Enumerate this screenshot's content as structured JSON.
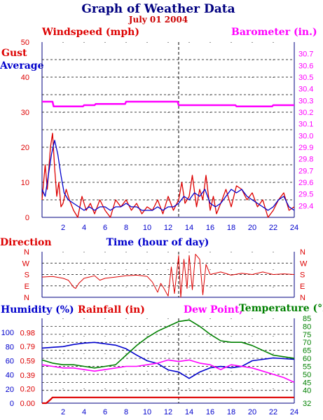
{
  "title": "Graph of Weather Data",
  "subtitle": "July 01 2004",
  "colors": {
    "title": "#000080",
    "subtitle": "#cc0000",
    "gust": "#dd0000",
    "average": "#0000cc",
    "barometer": "#ff00ff",
    "direction": "#dd0000",
    "humidity": "#0000cc",
    "rainfall": "#dd0000",
    "dewpoint": "#ff00ff",
    "temperature": "#008000",
    "axis": "#000080",
    "grid": "#000000"
  },
  "chart_data": [
    {
      "type": "line",
      "panel": "wind-barometer",
      "left_axis_label": "Windspeed (mph)",
      "right_axis_label": "Barometer (in.)",
      "left_series_labels": [
        "Gust",
        "Average"
      ],
      "xlabel": "Time (hour of day)",
      "xlim": [
        0,
        24
      ],
      "x_ticks": [
        2,
        4,
        6,
        8,
        10,
        12,
        14,
        16,
        18,
        20,
        22,
        24
      ],
      "ylim_left": [
        0,
        50
      ],
      "y_ticks_left": [
        0,
        10,
        20,
        30,
        40,
        50
      ],
      "ylim_right": [
        29.3,
        30.8
      ],
      "y_ticks_right": [
        "29.4",
        "29.5",
        "29.6",
        "29.7",
        "29.8",
        "29.9",
        "30.0",
        "30.1",
        "30.2",
        "30.3",
        "30.4",
        "30.5",
        "30.6",
        "30.7"
      ],
      "grid": true,
      "marker_hour": 13,
      "series": [
        {
          "name": "Gust",
          "axis": "left",
          "x": [
            0,
            0.3,
            0.5,
            0.8,
            1.0,
            1.2,
            1.4,
            1.6,
            1.8,
            2.0,
            2.3,
            2.6,
            3.0,
            3.4,
            3.8,
            4.2,
            4.6,
            5.0,
            5.5,
            6.0,
            6.5,
            7.0,
            7.5,
            8.0,
            8.5,
            9.0,
            9.5,
            10.0,
            10.5,
            11.0,
            11.5,
            12.0,
            12.5,
            13.0,
            13.3,
            13.6,
            14.0,
            14.3,
            14.7,
            15.0,
            15.3,
            15.6,
            16.0,
            16.3,
            16.6,
            17.0,
            17.5,
            18.0,
            18.5,
            19.0,
            19.5,
            20.0,
            20.5,
            21.0,
            21.5,
            22.0,
            22.5,
            23.0,
            23.5,
            24.0
          ],
          "values": [
            5,
            15,
            8,
            20,
            24,
            14,
            6,
            10,
            3,
            4,
            8,
            5,
            2,
            0,
            6,
            2,
            4,
            1,
            5,
            2,
            0,
            5,
            3,
            5,
            2,
            4,
            1,
            3,
            2,
            5,
            1,
            6,
            2,
            5,
            10,
            4,
            6,
            12,
            3,
            8,
            5,
            12,
            2,
            6,
            1,
            4,
            8,
            3,
            9,
            8,
            5,
            7,
            3,
            5,
            0,
            2,
            5,
            7,
            2,
            3
          ]
        },
        {
          "name": "Average",
          "axis": "left",
          "x": [
            0,
            0.3,
            0.6,
            0.9,
            1.2,
            1.5,
            1.8,
            2.1,
            2.5,
            3.0,
            3.5,
            4.0,
            4.5,
            5.0,
            5.5,
            6.0,
            6.5,
            7.0,
            7.5,
            8.0,
            8.5,
            9.0,
            9.5,
            10.0,
            10.5,
            11.0,
            11.5,
            12.0,
            12.5,
            13.0,
            13.5,
            14.0,
            14.5,
            15.0,
            15.5,
            16.0,
            16.5,
            17.0,
            17.5,
            18.0,
            18.5,
            19.0,
            19.5,
            20.0,
            20.5,
            21.0,
            21.5,
            22.0,
            22.5,
            23.0,
            23.5,
            24.0
          ],
          "values": [
            8,
            6,
            12,
            18,
            22,
            18,
            12,
            7,
            5,
            4,
            3,
            2,
            3,
            2,
            3,
            3,
            2,
            3,
            3,
            4,
            3,
            3,
            2,
            2,
            2,
            3,
            2,
            3,
            3,
            4,
            6,
            5,
            7,
            6,
            8,
            4,
            3,
            4,
            6,
            8,
            7,
            8,
            6,
            5,
            4,
            3,
            2,
            3,
            5,
            6,
            3,
            2
          ]
        },
        {
          "name": "Barometer",
          "axis": "right",
          "x": [
            0,
            1.0,
            1.1,
            3.9,
            4.0,
            5.0,
            5.1,
            7.9,
            8.0,
            12.9,
            13.0,
            18.4,
            18.5,
            21.9,
            22.0,
            24.0
          ],
          "values": [
            30.29,
            30.29,
            30.25,
            30.25,
            30.26,
            30.26,
            30.27,
            30.27,
            30.29,
            30.29,
            30.26,
            30.26,
            30.25,
            30.25,
            30.26,
            30.26
          ]
        }
      ]
    },
    {
      "type": "line",
      "panel": "direction",
      "left_axis_label": "Direction",
      "y_ticks": [
        "N",
        "W",
        "S",
        "E",
        "N"
      ],
      "xlim": [
        0,
        24
      ],
      "grid": true,
      "series": [
        {
          "name": "Direction",
          "x": [
            0,
            1,
            2,
            2.5,
            3.0,
            3.2,
            3.5,
            4,
            5,
            5.5,
            6,
            7,
            8,
            9,
            10,
            10.5,
            11,
            11.3,
            11.6,
            12,
            12.3,
            12.6,
            13,
            13.2,
            13.5,
            13.8,
            14,
            14.3,
            14.6,
            15,
            15.3,
            15.6,
            16,
            17,
            18,
            19,
            20,
            21,
            22,
            23,
            24
          ],
          "values": [
            160,
            165,
            150,
            135,
            80,
            70,
            110,
            150,
            170,
            135,
            150,
            160,
            170,
            175,
            165,
            120,
            40,
            110,
            70,
            10,
            240,
            30,
            330,
            0,
            300,
            70,
            330,
            60,
            340,
            300,
            20,
            260,
            180,
            200,
            175,
            190,
            180,
            200,
            180,
            185,
            180
          ]
        }
      ]
    },
    {
      "type": "line",
      "panel": "humidity-temperature",
      "left_axis_label": "Humidity (%)",
      "rain_axis_label": "Rainfall (in)",
      "dewpoint_label": "Dew Point,",
      "right_axis_label": "Temperature (°F)",
      "xlim": [
        0,
        24
      ],
      "y_ticks_humidity": [
        0,
        20,
        40,
        60,
        80,
        100
      ],
      "y_ticks_rainfall": [
        "0.00",
        "0.20",
        "0.39",
        "0.59",
        "0.79",
        "0.98"
      ],
      "y_ticks_temperature": [
        32,
        40,
        45,
        50,
        55,
        60,
        65,
        70,
        75,
        80,
        85
      ],
      "ylim_temperature": [
        32,
        85
      ],
      "grid": true,
      "series": [
        {
          "name": "Humidity",
          "axis": "humidity",
          "x": [
            0,
            1,
            2,
            3,
            4,
            5,
            6,
            7,
            8,
            9,
            10,
            11,
            12,
            13,
            14,
            15,
            16,
            17,
            18,
            19,
            20,
            21,
            22,
            23,
            24
          ],
          "values": [
            78,
            79,
            80,
            83,
            85,
            86,
            84,
            82,
            77,
            68,
            60,
            56,
            47,
            44,
            35,
            44,
            50,
            52,
            50,
            52,
            60,
            62,
            64,
            63,
            62
          ]
        },
        {
          "name": "Rainfall",
          "axis": "rainfall",
          "x": [
            0,
            0.4,
            0.8,
            1.0,
            24
          ],
          "values": [
            0,
            0.0,
            0.05,
            0.08,
            0.08
          ]
        },
        {
          "name": "Dew Point",
          "axis": "temperature",
          "x": [
            0,
            1,
            2,
            3,
            4,
            5,
            6,
            7,
            8,
            9,
            10,
            11,
            12,
            13,
            14,
            15,
            16,
            17,
            18,
            19,
            20,
            21,
            22,
            23,
            24
          ],
          "values": [
            56,
            55,
            54,
            54,
            53,
            52,
            53,
            54,
            55,
            55,
            56,
            57,
            59,
            58,
            59,
            57,
            56,
            53,
            56,
            55,
            54,
            52,
            50,
            48,
            45
          ]
        },
        {
          "name": "Temperature",
          "axis": "temperature",
          "x": [
            0,
            1,
            2,
            3,
            4,
            5,
            6,
            7,
            8,
            9,
            10,
            11,
            12,
            13,
            14,
            15,
            16,
            17,
            18,
            19,
            20,
            21,
            22,
            23,
            24
          ],
          "values": [
            59,
            57,
            56,
            56,
            55,
            54,
            55,
            56,
            62,
            68,
            73,
            77,
            80,
            83,
            84,
            80,
            75,
            71,
            70,
            70,
            68,
            65,
            62,
            61,
            60
          ]
        }
      ]
    }
  ]
}
